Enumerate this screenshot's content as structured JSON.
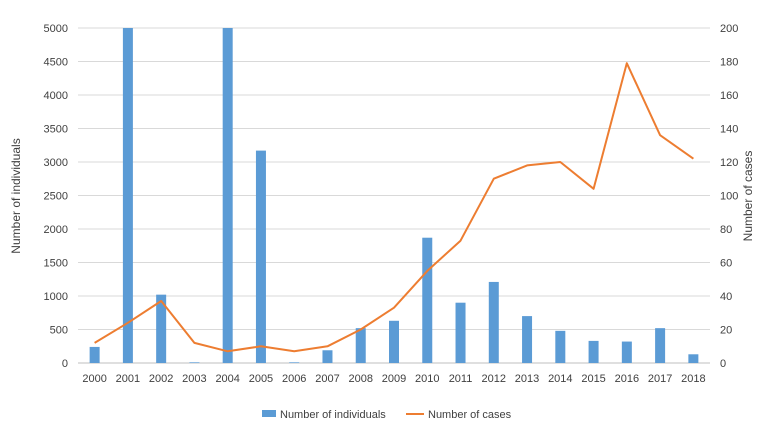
{
  "chart_data": {
    "type": "bar",
    "categories": [
      "2000",
      "2001",
      "2002",
      "2003",
      "2004",
      "2005",
      "2006",
      "2007",
      "2008",
      "2009",
      "2010",
      "2011",
      "2012",
      "2013",
      "2014",
      "2015",
      "2016",
      "2017",
      "2018"
    ],
    "series": [
      {
        "name": "Number of individuals",
        "type": "bar",
        "axis": "left",
        "color": "#5B9BD5",
        "values": [
          240,
          5000,
          1020,
          10,
          5000,
          3170,
          10,
          190,
          520,
          630,
          1870,
          900,
          1210,
          700,
          480,
          330,
          320,
          520,
          130
        ]
      },
      {
        "name": "Number of cases",
        "type": "line",
        "axis": "right",
        "color": "#ED7D31",
        "values": [
          12,
          24,
          37,
          12,
          7,
          10,
          7,
          10,
          20,
          33,
          55,
          73,
          110,
          118,
          120,
          104,
          179,
          136,
          122
        ]
      }
    ],
    "ylabel": "Number of individuals",
    "y2label": "Number of cases",
    "ylim": [
      0,
      5000
    ],
    "y2lim": [
      0,
      200
    ],
    "yticks": [
      "0",
      "500",
      "1000",
      "1500",
      "2000",
      "2500",
      "3000",
      "3500",
      "4000",
      "4500",
      "5000"
    ],
    "y2ticks": [
      "0",
      "20",
      "40",
      "60",
      "80",
      "100",
      "120",
      "140",
      "160",
      "180",
      "200"
    ],
    "grid": true,
    "legend_position": "bottom"
  }
}
